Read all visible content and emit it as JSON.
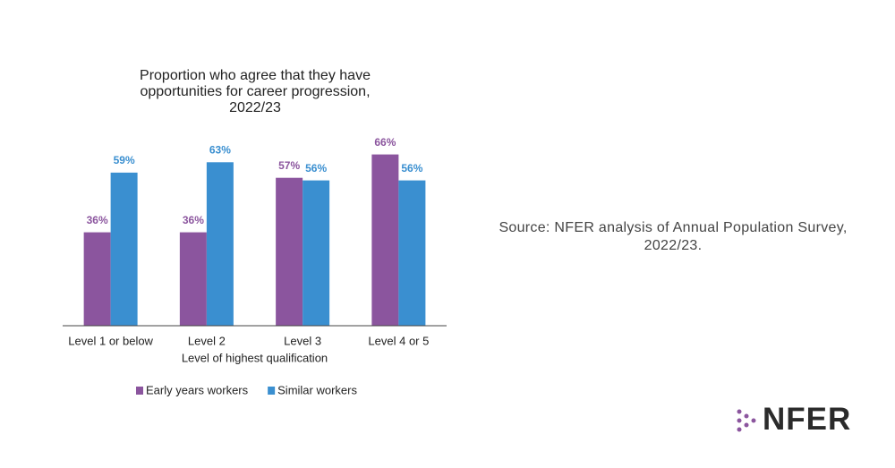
{
  "chart_data": {
    "type": "bar",
    "title": "Proportion who agree that they have opportunities for career progression, 2022/23",
    "x_label": "Level of highest qualification",
    "categories": [
      "Level 1 or below",
      "Level 2",
      "Level 3",
      "Level 4 or 5"
    ],
    "series": [
      {
        "name": "Early years workers",
        "color": "#8b559e",
        "values": [
          36,
          36,
          57,
          66
        ],
        "value_labels": [
          "36%",
          "36%",
          "57%",
          "66%"
        ]
      },
      {
        "name": "Similar workers",
        "color": "#3a8fd0",
        "values": [
          59,
          63,
          56,
          56
        ],
        "value_labels": [
          "59%",
          "63%",
          "56%",
          "56%"
        ]
      }
    ],
    "ylim": [
      0,
      70
    ],
    "grid": false,
    "legend": "bottom"
  },
  "source": "Source: NFER analysis of Annual Population Survey, 2022/23.",
  "logo": "NFER"
}
